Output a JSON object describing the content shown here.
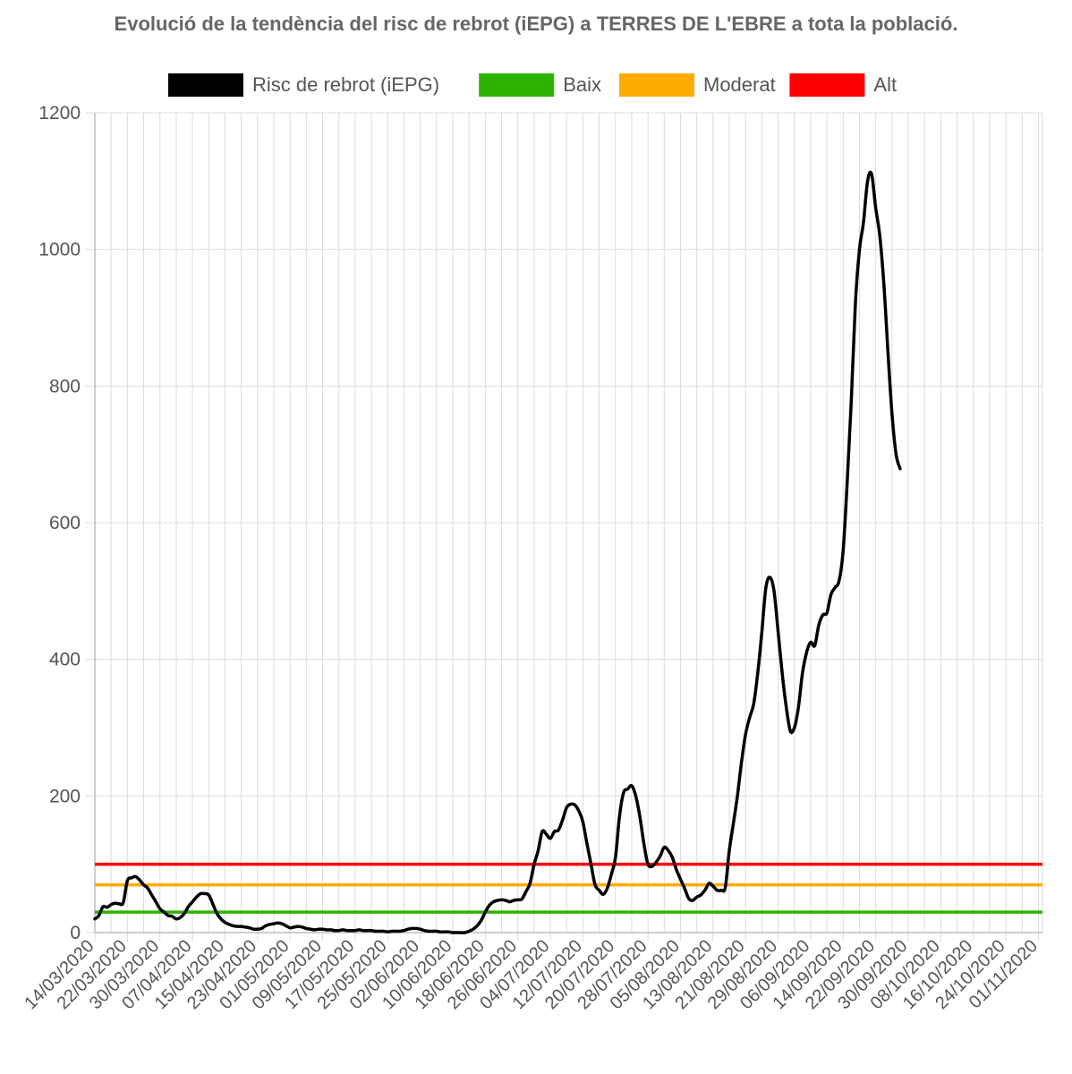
{
  "chart_data": {
    "type": "line",
    "title": "Evolució de la tendència del risc de rebrot (iEPG) a TERRES DE L'EBRE a tota la població.",
    "xlabel": "",
    "ylabel": "",
    "ylim": [
      0,
      1200
    ],
    "yticks": [
      "0",
      "200",
      "400",
      "600",
      "800",
      "1000",
      "1200"
    ],
    "x_start": "14/03/2020",
    "x_end": "02/11/2020",
    "grid": true,
    "legend_position": "top",
    "xticks": [
      "14/03/2020",
      "22/03/2020",
      "30/03/2020",
      "07/04/2020",
      "15/04/2020",
      "23/04/2020",
      "01/05/2020",
      "09/05/2020",
      "17/05/2020",
      "25/05/2020",
      "02/06/2020",
      "10/06/2020",
      "18/06/2020",
      "26/06/2020",
      "04/07/2020",
      "12/07/2020",
      "20/07/2020",
      "28/07/2020",
      "05/08/2020",
      "13/08/2020",
      "21/08/2020",
      "29/08/2020",
      "06/09/2020",
      "14/09/2020",
      "22/09/2020",
      "30/09/2020",
      "08/10/2020",
      "16/10/2020",
      "24/10/2020",
      "01/11/2020"
    ],
    "series": [
      {
        "name": "Risc de rebrot (iEPG)",
        "color": "#000000",
        "points": [
          [
            "14/03/2020",
            20
          ],
          [
            "15/03/2020",
            25
          ],
          [
            "16/03/2020",
            38
          ],
          [
            "17/03/2020",
            37
          ],
          [
            "18/03/2020",
            41
          ],
          [
            "19/03/2020",
            43
          ],
          [
            "20/03/2020",
            42
          ],
          [
            "21/03/2020",
            44
          ],
          [
            "22/03/2020",
            76
          ],
          [
            "23/03/2020",
            80
          ],
          [
            "24/03/2020",
            82
          ],
          [
            "25/03/2020",
            77
          ],
          [
            "26/03/2020",
            70
          ],
          [
            "27/03/2020",
            65
          ],
          [
            "28/03/2020",
            55
          ],
          [
            "29/03/2020",
            45
          ],
          [
            "30/03/2020",
            35
          ],
          [
            "31/03/2020",
            30
          ],
          [
            "01/04/2020",
            25
          ],
          [
            "02/04/2020",
            24
          ],
          [
            "03/04/2020",
            20
          ],
          [
            "04/04/2020",
            22
          ],
          [
            "05/04/2020",
            28
          ],
          [
            "06/04/2020",
            38
          ],
          [
            "07/04/2020",
            45
          ],
          [
            "08/04/2020",
            52
          ],
          [
            "09/04/2020",
            57
          ],
          [
            "10/04/2020",
            57
          ],
          [
            "11/04/2020",
            55
          ],
          [
            "12/04/2020",
            42
          ],
          [
            "13/04/2020",
            28
          ],
          [
            "14/04/2020",
            20
          ],
          [
            "15/04/2020",
            15
          ],
          [
            "16/04/2020",
            12
          ],
          [
            "17/04/2020",
            10
          ],
          [
            "18/04/2020",
            9
          ],
          [
            "19/04/2020",
            9
          ],
          [
            "20/04/2020",
            8
          ],
          [
            "21/04/2020",
            7
          ],
          [
            "22/04/2020",
            5
          ],
          [
            "23/04/2020",
            5
          ],
          [
            "24/04/2020",
            6
          ],
          [
            "25/04/2020",
            10
          ],
          [
            "26/04/2020",
            12
          ],
          [
            "27/04/2020",
            13
          ],
          [
            "28/04/2020",
            14
          ],
          [
            "29/04/2020",
            13
          ],
          [
            "30/04/2020",
            10
          ],
          [
            "01/05/2020",
            7
          ],
          [
            "02/05/2020",
            8
          ],
          [
            "03/05/2020",
            9
          ],
          [
            "04/05/2020",
            8
          ],
          [
            "05/05/2020",
            6
          ],
          [
            "06/05/2020",
            5
          ],
          [
            "07/05/2020",
            4
          ],
          [
            "08/05/2020",
            5
          ],
          [
            "09/05/2020",
            5
          ],
          [
            "10/05/2020",
            4
          ],
          [
            "11/05/2020",
            4
          ],
          [
            "12/05/2020",
            3
          ],
          [
            "13/05/2020",
            3
          ],
          [
            "14/05/2020",
            4
          ],
          [
            "15/05/2020",
            3
          ],
          [
            "16/05/2020",
            3
          ],
          [
            "17/05/2020",
            3
          ],
          [
            "18/05/2020",
            4
          ],
          [
            "19/05/2020",
            3
          ],
          [
            "20/05/2020",
            3
          ],
          [
            "21/05/2020",
            3
          ],
          [
            "22/05/2020",
            2
          ],
          [
            "23/05/2020",
            2
          ],
          [
            "24/05/2020",
            2
          ],
          [
            "25/05/2020",
            1
          ],
          [
            "26/05/2020",
            2
          ],
          [
            "27/05/2020",
            2
          ],
          [
            "28/05/2020",
            2
          ],
          [
            "29/05/2020",
            3
          ],
          [
            "30/05/2020",
            5
          ],
          [
            "31/05/2020",
            6
          ],
          [
            "01/06/2020",
            6
          ],
          [
            "02/06/2020",
            5
          ],
          [
            "03/06/2020",
            3
          ],
          [
            "04/06/2020",
            2
          ],
          [
            "05/06/2020",
            2
          ],
          [
            "06/06/2020",
            2
          ],
          [
            "07/06/2020",
            1
          ],
          [
            "08/06/2020",
            1
          ],
          [
            "09/06/2020",
            1
          ],
          [
            "10/06/2020",
            0
          ],
          [
            "11/06/2020",
            0
          ],
          [
            "12/06/2020",
            0
          ],
          [
            "13/06/2020",
            0
          ],
          [
            "14/06/2020",
            2
          ],
          [
            "15/06/2020",
            5
          ],
          [
            "16/06/2020",
            10
          ],
          [
            "17/06/2020",
            18
          ],
          [
            "18/06/2020",
            30
          ],
          [
            "19/06/2020",
            40
          ],
          [
            "20/06/2020",
            45
          ],
          [
            "21/06/2020",
            47
          ],
          [
            "22/06/2020",
            48
          ],
          [
            "23/06/2020",
            47
          ],
          [
            "24/06/2020",
            45
          ],
          [
            "25/06/2020",
            47
          ],
          [
            "26/06/2020",
            48
          ],
          [
            "27/06/2020",
            49
          ],
          [
            "28/06/2020",
            60
          ],
          [
            "29/06/2020",
            72
          ],
          [
            "30/06/2020",
            100
          ],
          [
            "01/07/2020",
            120
          ],
          [
            "02/07/2020",
            148
          ],
          [
            "03/07/2020",
            144
          ],
          [
            "04/07/2020",
            138
          ],
          [
            "05/07/2020",
            148
          ],
          [
            "06/07/2020",
            150
          ],
          [
            "07/07/2020",
            165
          ],
          [
            "08/07/2020",
            183
          ],
          [
            "09/07/2020",
            188
          ],
          [
            "10/07/2020",
            187
          ],
          [
            "11/07/2020",
            178
          ],
          [
            "12/07/2020",
            162
          ],
          [
            "13/07/2020",
            130
          ],
          [
            "14/07/2020",
            100
          ],
          [
            "15/07/2020",
            70
          ],
          [
            "16/07/2020",
            62
          ],
          [
            "17/07/2020",
            56
          ],
          [
            "18/07/2020",
            65
          ],
          [
            "19/07/2020",
            85
          ],
          [
            "20/07/2020",
            110
          ],
          [
            "21/07/2020",
            170
          ],
          [
            "22/07/2020",
            205
          ],
          [
            "23/07/2020",
            210
          ],
          [
            "24/07/2020",
            215
          ],
          [
            "25/07/2020",
            200
          ],
          [
            "26/07/2020",
            170
          ],
          [
            "27/07/2020",
            130
          ],
          [
            "28/07/2020",
            100
          ],
          [
            "29/07/2020",
            97
          ],
          [
            "30/07/2020",
            103
          ],
          [
            "31/07/2020",
            112
          ],
          [
            "01/08/2020",
            125
          ],
          [
            "02/08/2020",
            120
          ],
          [
            "03/08/2020",
            110
          ],
          [
            "04/08/2020",
            92
          ],
          [
            "05/08/2020",
            78
          ],
          [
            "06/08/2020",
            65
          ],
          [
            "07/08/2020",
            50
          ],
          [
            "08/08/2020",
            47
          ],
          [
            "09/08/2020",
            52
          ],
          [
            "10/08/2020",
            55
          ],
          [
            "11/08/2020",
            62
          ],
          [
            "12/08/2020",
            72
          ],
          [
            "13/08/2020",
            68
          ],
          [
            "14/08/2020",
            62
          ],
          [
            "15/08/2020",
            62
          ],
          [
            "16/08/2020",
            66
          ],
          [
            "17/08/2020",
            120
          ],
          [
            "18/08/2020",
            160
          ],
          [
            "19/08/2020",
            200
          ],
          [
            "20/08/2020",
            250
          ],
          [
            "21/08/2020",
            290
          ],
          [
            "22/08/2020",
            315
          ],
          [
            "23/08/2020",
            335
          ],
          [
            "24/08/2020",
            380
          ],
          [
            "25/08/2020",
            440
          ],
          [
            "26/08/2020",
            505
          ],
          [
            "27/08/2020",
            520
          ],
          [
            "28/08/2020",
            500
          ],
          [
            "29/08/2020",
            440
          ],
          [
            "30/08/2020",
            380
          ],
          [
            "31/08/2020",
            330
          ],
          [
            "01/09/2020",
            295
          ],
          [
            "02/09/2020",
            300
          ],
          [
            "03/09/2020",
            330
          ],
          [
            "04/09/2020",
            380
          ],
          [
            "05/09/2020",
            410
          ],
          [
            "06/09/2020",
            425
          ],
          [
            "07/09/2020",
            420
          ],
          [
            "08/09/2020",
            450
          ],
          [
            "09/09/2020",
            465
          ],
          [
            "10/09/2020",
            468
          ],
          [
            "11/09/2020",
            495
          ],
          [
            "12/09/2020",
            505
          ],
          [
            "13/09/2020",
            515
          ],
          [
            "14/09/2020",
            560
          ],
          [
            "15/09/2020",
            660
          ],
          [
            "16/09/2020",
            780
          ],
          [
            "17/09/2020",
            920
          ],
          [
            "18/09/2020",
            1000
          ],
          [
            "19/09/2020",
            1040
          ],
          [
            "20/09/2020",
            1100
          ],
          [
            "21/09/2020",
            1110
          ],
          [
            "22/09/2020",
            1060
          ],
          [
            "23/09/2020",
            1020
          ],
          [
            "24/09/2020",
            950
          ],
          [
            "25/09/2020",
            850
          ],
          [
            "26/09/2020",
            760
          ],
          [
            "27/09/2020",
            700
          ],
          [
            "28/09/2020",
            679
          ]
        ]
      },
      {
        "name": "Baix",
        "color": "#2db400",
        "values_constant": 30
      },
      {
        "name": "Moderat",
        "color": "#ffaa00",
        "values_constant": 70
      },
      {
        "name": "Alt",
        "color": "#ff0000",
        "values_constant": 100
      }
    ]
  }
}
